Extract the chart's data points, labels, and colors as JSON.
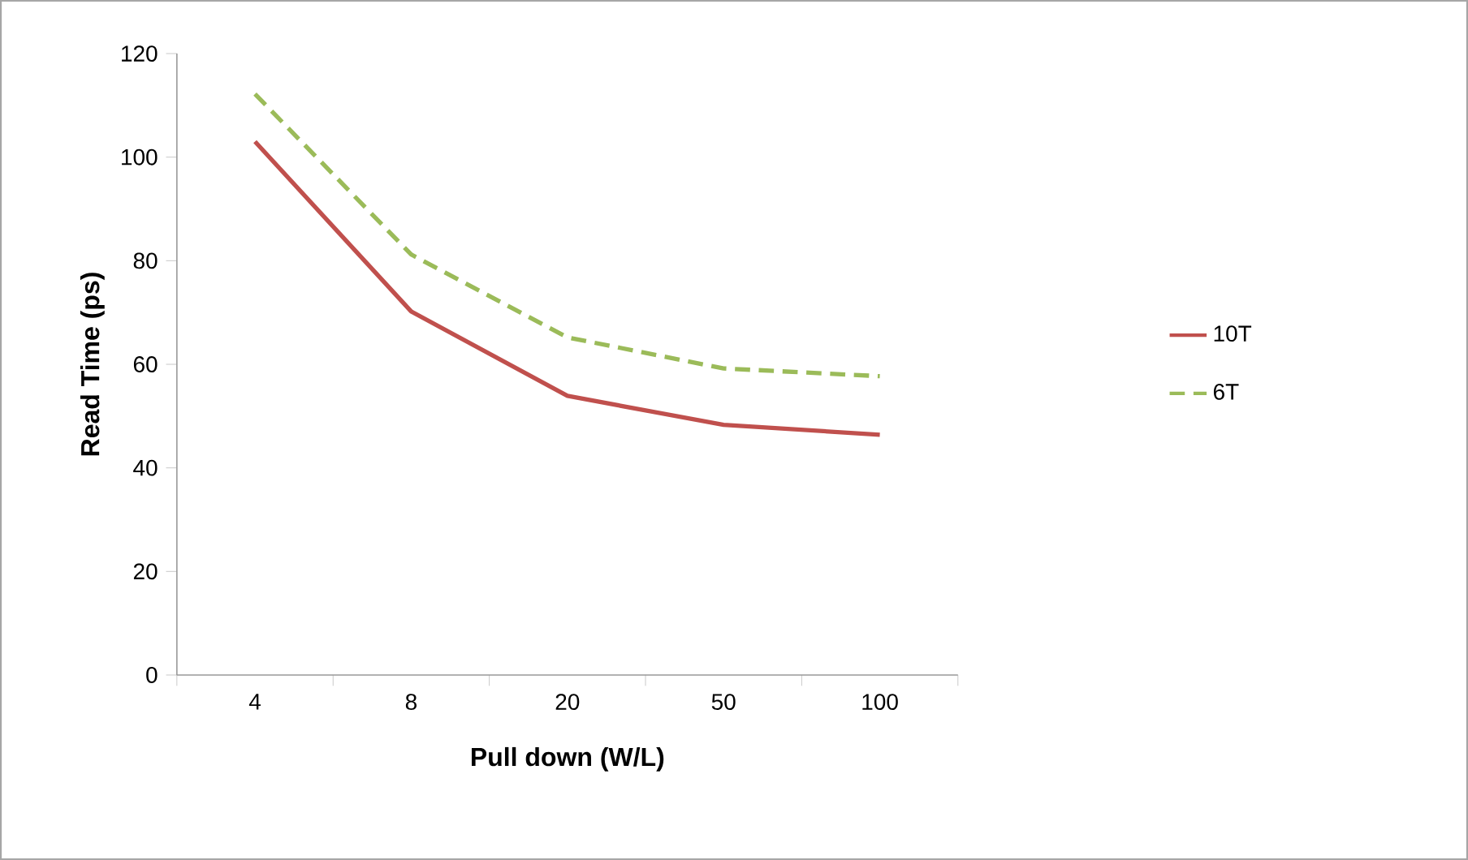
{
  "chart_data": {
    "type": "line",
    "xlabel": "Pull down (W/L)",
    "ylabel": "Read Time (ps)",
    "categories": [
      "4",
      "8",
      "20",
      "50",
      "100"
    ],
    "series": [
      {
        "name": "10T",
        "color": "#c0504d",
        "line_style": "solid",
        "values": [
          103,
          70.2,
          53.9,
          48.3,
          46.4
        ]
      },
      {
        "name": "6T",
        "color": "#9bbb59",
        "line_style": "dashed",
        "values": [
          112.2,
          81.2,
          65.2,
          59.2,
          57.7
        ]
      }
    ],
    "ylim": [
      0,
      120
    ],
    "yticks": [
      0,
      20,
      40,
      60,
      80,
      100,
      120
    ],
    "grid": false,
    "legend": "right",
    "marker": "none"
  }
}
